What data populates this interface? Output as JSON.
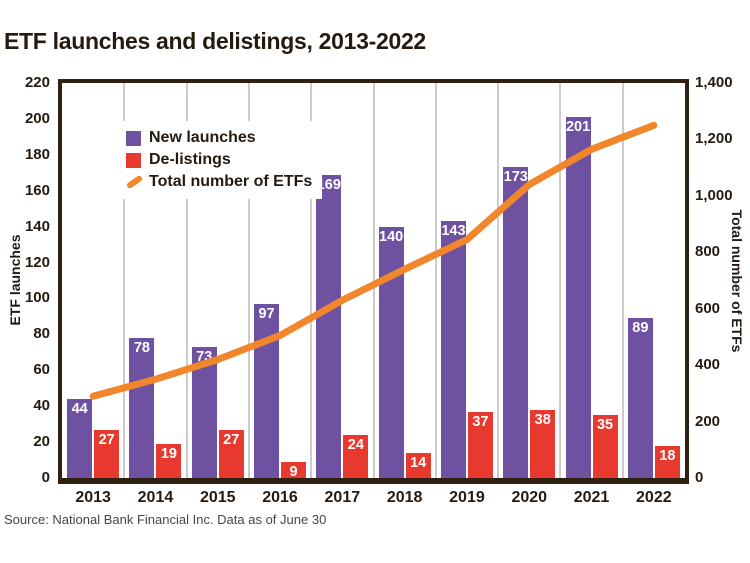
{
  "title": "ETF launches and delistings, 2013-2022",
  "source": "Source: National Bank Financial Inc. Data as of June 30",
  "palette": {
    "purple": "#6e51a1",
    "red": "#e8392f",
    "orange": "#f1862d",
    "dark": "#241a10",
    "border": "#2f2012",
    "gridline": "#cccccc"
  },
  "chart_data": {
    "type": "bar+line combo",
    "categories": [
      "2013",
      "2014",
      "2015",
      "2016",
      "2017",
      "2018",
      "2019",
      "2020",
      "2021",
      "2022"
    ],
    "series": [
      {
        "name": "New launches",
        "type": "bar",
        "axis": "left",
        "color": "#6e51a1",
        "values": [
          44,
          78,
          73,
          97,
          169,
          140,
          143,
          173,
          201,
          89
        ]
      },
      {
        "name": "De-listings",
        "type": "bar",
        "axis": "left",
        "color": "#e8392f",
        "values": [
          27,
          19,
          27,
          9,
          24,
          14,
          37,
          38,
          35,
          18
        ]
      },
      {
        "name": "Total number of ETFs",
        "type": "line",
        "axis": "right",
        "color": "#f1862d",
        "values": [
          290,
          350,
          420,
          505,
          630,
          740,
          845,
          1040,
          1165,
          1250
        ]
      }
    ],
    "left_axis": {
      "label": "ETF launches",
      "min": 0,
      "max": 220,
      "step": 20
    },
    "right_axis": {
      "label": "Total number of ETFs",
      "min": 0,
      "max": 1400,
      "step": 200
    },
    "legend_position": "top-left inside plot",
    "grid": "vertical column separators only",
    "bar_value_labels": "white, inside top of bars"
  }
}
